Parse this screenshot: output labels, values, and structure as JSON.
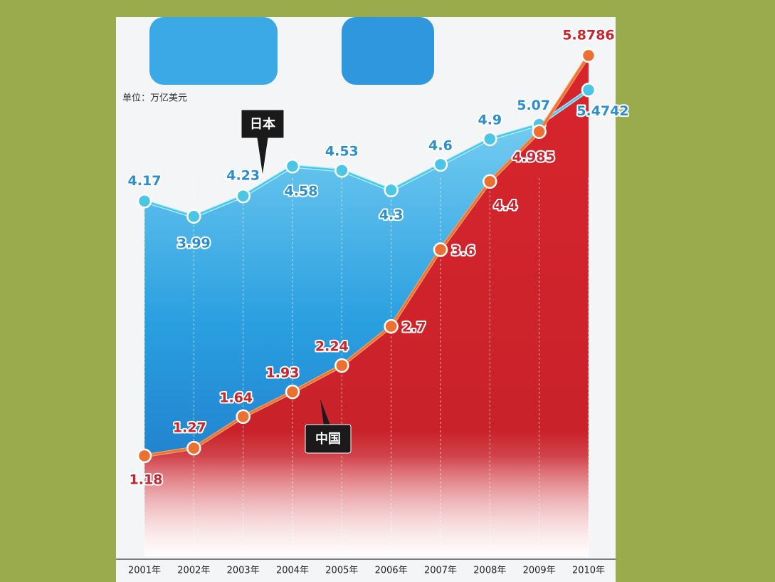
{
  "chart_data": {
    "type": "line",
    "unit_label": "单位：万亿美元",
    "categories": [
      "2001年",
      "2002年",
      "2003年",
      "2004年",
      "2005年",
      "2006年",
      "2007年",
      "2008年",
      "2009年",
      "2010年"
    ],
    "series": [
      {
        "name": "日本",
        "color": "#4cc6e6",
        "values": [
          4.17,
          3.99,
          4.23,
          4.58,
          4.53,
          4.3,
          4.6,
          4.9,
          5.07,
          5.4742
        ]
      },
      {
        "name": "中国",
        "color": "#ec7130",
        "values": [
          1.18,
          1.27,
          1.64,
          1.93,
          2.24,
          2.7,
          3.6,
          4.4,
          4.985,
          5.8786
        ]
      }
    ],
    "ylim": [
      0,
      6.5
    ],
    "grid": true
  }
}
